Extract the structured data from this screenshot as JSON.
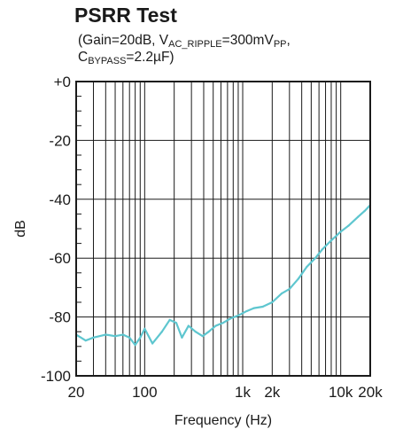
{
  "header": {
    "title": "PSRR Test",
    "sub1": {
      "a": "(Gain=20dB, V",
      "b": "AC_RIPPLE",
      "c": "=300mV",
      "d": "PP",
      "e": ","
    },
    "sub2": {
      "a": "C",
      "b": "BYPASS",
      "c": "=2.2µF)"
    }
  },
  "chart_data": {
    "type": "line",
    "title": "PSRR Test",
    "xlabel": "Frequency (Hz)",
    "ylabel": "dB",
    "xscale": "log",
    "xlim": [
      20,
      20000
    ],
    "ylim": [
      -100,
      0
    ],
    "grid": true,
    "x_ticks": [
      {
        "value": 20,
        "label": "20"
      },
      {
        "value": 100,
        "label": "100"
      },
      {
        "value": 1000,
        "label": "1k"
      },
      {
        "value": 2000,
        "label": "2k"
      },
      {
        "value": 10000,
        "label": "10k"
      },
      {
        "value": 20000,
        "label": "20k"
      }
    ],
    "y_ticks": [
      {
        "value": 0,
        "label": "+0"
      },
      {
        "value": -20,
        "label": "-20"
      },
      {
        "value": -40,
        "label": "-40"
      },
      {
        "value": -60,
        "label": "-60"
      },
      {
        "value": -80,
        "label": "-80"
      },
      {
        "value": -100,
        "label": "-100"
      }
    ],
    "line_color": "#5ec6cf",
    "x": [
      20,
      25,
      30,
      40,
      50,
      60,
      70,
      80,
      90,
      100,
      120,
      150,
      180,
      210,
      240,
      280,
      330,
      390,
      450,
      530,
      630,
      750,
      900,
      1100,
      1300,
      1600,
      2000,
      2500,
      3000,
      3700,
      4500,
      5500,
      6500,
      8000,
      10000,
      12000,
      15000,
      17500,
      20000
    ],
    "y": [
      -86,
      -88,
      -87,
      -86,
      -86.5,
      -86,
      -87,
      -89.5,
      -87,
      -84,
      -89,
      -85,
      -81,
      -82,
      -87,
      -83,
      -85,
      -86.5,
      -85,
      -83,
      -82,
      -80.5,
      -79.5,
      -78,
      -77,
      -76.5,
      -75,
      -72,
      -70.5,
      -67,
      -63,
      -60,
      -57,
      -54,
      -51,
      -49,
      -46,
      -44,
      -42
    ]
  }
}
